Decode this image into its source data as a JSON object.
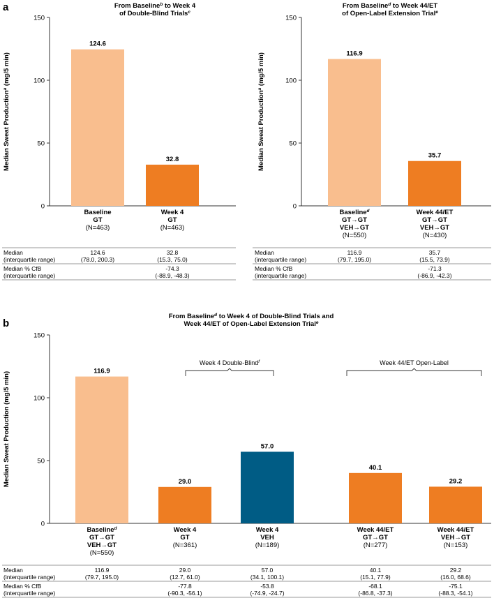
{
  "colors": {
    "baseline": "#F9BE8E",
    "gt": "#EE7D22",
    "veh": "#005C85",
    "axis": "#333333",
    "line": "#777777"
  },
  "chart_data": [
    {
      "panel": "a",
      "type": "bar",
      "title_parts": [
        "From Baseline",
        "b",
        " to Week 4",
        "of Double-Blind Trials",
        "c"
      ],
      "ylabel_parts": [
        "Median Sweat Production",
        "a",
        " (mg/5 min)"
      ],
      "ylim": [
        0,
        150
      ],
      "yticks": [
        "0",
        "50",
        "100",
        "150"
      ],
      "bars": [
        {
          "value": 124.6,
          "label": "124.6",
          "color_key": "baseline",
          "cat_lines": [
            [
              "Baseline",
              ""
            ],
            [
              "GT",
              ""
            ]
          ],
          "n": "(N=463)"
        },
        {
          "value": 32.8,
          "label": "32.8",
          "color_key": "gt",
          "cat_lines": [
            [
              "Week 4",
              ""
            ],
            [
              "GT",
              ""
            ]
          ],
          "n": "(N=463)"
        }
      ],
      "table": {
        "row1_label": [
          "Median",
          "(interquartile range)"
        ],
        "row2_label": [
          "Median % CfB",
          "(interquartile range)"
        ],
        "median": [
          [
            "124.6",
            "(78.0, 200.3)"
          ],
          [
            "32.8",
            "(15.3, 75.0)"
          ]
        ],
        "cfb": [
          [
            "",
            ""
          ],
          [
            "-74.3",
            "(-88.9, -48.3)"
          ]
        ]
      }
    },
    {
      "panel": "",
      "type": "bar",
      "title_parts": [
        "From Baseline",
        "d",
        " to Week 44/ET",
        "of Open-Label Extension Trial",
        "e"
      ],
      "ylabel_parts": [
        "Median Sweat Production",
        "a",
        " (mg/5 min)"
      ],
      "ylim": [
        0,
        150
      ],
      "yticks": [
        "0",
        "50",
        "100",
        "150"
      ],
      "bars": [
        {
          "value": 116.9,
          "label": "116.9",
          "color_key": "baseline",
          "cat_lines": [
            [
              "Baseline",
              "d"
            ],
            [
              "GT→GT",
              ""
            ],
            [
              "VEH→GT",
              ""
            ]
          ],
          "n": "(N=550)"
        },
        {
          "value": 35.7,
          "label": "35.7",
          "color_key": "gt",
          "cat_lines": [
            [
              "Week 44/ET",
              ""
            ],
            [
              "GT→GT",
              ""
            ],
            [
              "VEH→GT",
              ""
            ]
          ],
          "n": "(N=430)"
        }
      ],
      "table": {
        "row1_label": [
          "Median",
          "(interquartile range)"
        ],
        "row2_label": [
          "Median % CfB",
          "(interquartile range)"
        ],
        "median": [
          [
            "116.9",
            "(79.7, 195.0)"
          ],
          [
            "35.7",
            "(15.5, 73.9)"
          ]
        ],
        "cfb": [
          [
            "",
            ""
          ],
          [
            "-71.3",
            "(-86.9, -42.3)"
          ]
        ]
      }
    },
    {
      "panel": "b",
      "type": "bar",
      "title_line1": [
        "From Baseline",
        "d",
        " to Week 4 of Double-Blind Trials and"
      ],
      "title_line2": [
        "Week 44/ET of Open-Label Extension Trial",
        "e"
      ],
      "ylabel_parts": [
        "Median Sweat Production (mg/5 min)"
      ],
      "ylim": [
        0,
        150
      ],
      "yticks": [
        "0",
        "50",
        "100",
        "150"
      ],
      "brackets": [
        {
          "text": "Week 4 Double-Blind",
          "sup": "f"
        },
        {
          "text": "Week 44/ET Open-Label",
          "sup": ""
        }
      ],
      "bars": [
        {
          "value": 116.9,
          "label": "116.9",
          "color_key": "baseline",
          "cat_lines": [
            [
              "Baseline",
              "d"
            ],
            [
              "GT→GT",
              ""
            ],
            [
              "VEH→GT",
              ""
            ]
          ],
          "n": "(N=550)"
        },
        {
          "value": 29.0,
          "label": "29.0",
          "color_key": "gt",
          "cat_lines": [
            [
              "Week 4",
              ""
            ],
            [
              "GT",
              ""
            ]
          ],
          "n": "(N=361)"
        },
        {
          "value": 57.0,
          "label": "57.0",
          "color_key": "veh",
          "cat_lines": [
            [
              "Week 4",
              ""
            ],
            [
              "VEH",
              ""
            ]
          ],
          "n": "(N=189)"
        },
        {
          "value": 40.1,
          "label": "40.1",
          "color_key": "gt",
          "cat_lines": [
            [
              "Week 44/ET",
              ""
            ],
            [
              "GT→GT",
              ""
            ]
          ],
          "n": "(N=277)"
        },
        {
          "value": 29.2,
          "label": "29.2",
          "color_key": "gt",
          "cat_lines": [
            [
              "Week 44/ET",
              ""
            ],
            [
              "VEH→GT",
              ""
            ]
          ],
          "n": "(N=153)"
        }
      ],
      "table": {
        "row1_label": [
          "Median",
          "(interquartile range)"
        ],
        "row2_label": [
          "Median % CfB",
          "(interquartile range)"
        ],
        "median": [
          [
            "116.9",
            "(79.7, 195.0)"
          ],
          [
            "29.0",
            "(12.7, 61.0)"
          ],
          [
            "57.0",
            "(34.1, 100.1)"
          ],
          [
            "40.1",
            "(15.1, 77.9)"
          ],
          [
            "29.2",
            "(16.0, 68.6)"
          ]
        ],
        "cfb": [
          [
            "",
            ""
          ],
          [
            "-77.8",
            "(-90.3, -56.1)"
          ],
          [
            "-53.8",
            "(-74.9, -24.7)"
          ],
          [
            "-68.1",
            "(-86.8, -37.3)"
          ],
          [
            "-75.1",
            "(-88.3, -54.1)"
          ]
        ]
      }
    }
  ]
}
